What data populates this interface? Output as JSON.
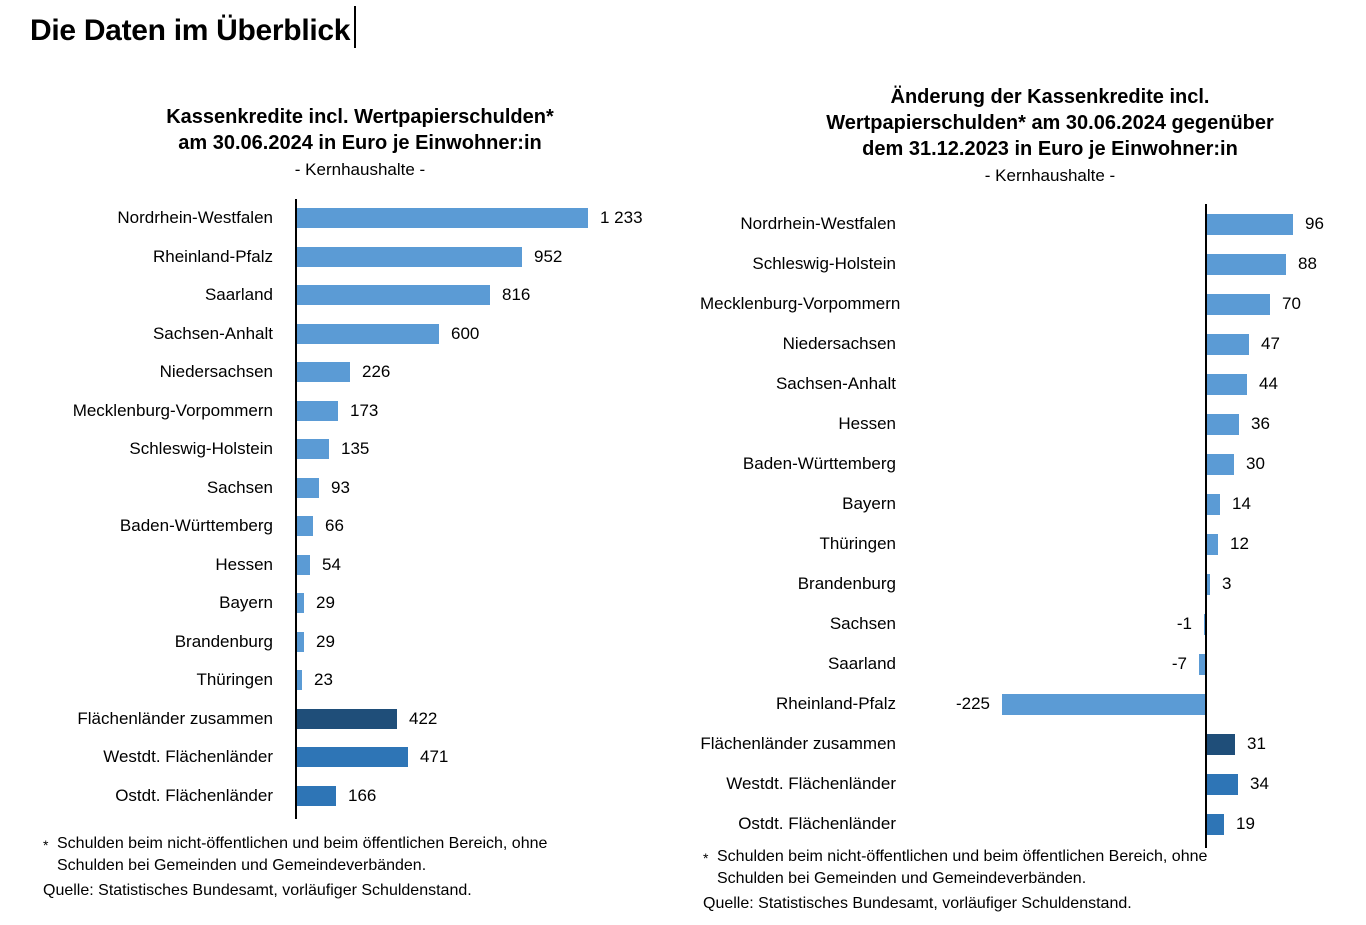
{
  "page": {
    "title": "Die Daten im Überblick"
  },
  "colors": {
    "state": "#5B9BD5",
    "region": "#2E75B6",
    "total": "#1F4E79",
    "axis": "#000000"
  },
  "footnote": {
    "marker": "*",
    "line1": "Schulden beim nicht-öffentlichen und beim öffentlichen Bereich, ohne",
    "line2": "Schulden bei Gemeinden und Gemeindeverbänden.",
    "source": "Quelle: Statistisches Bundesamt, vorläufiger Schuldenstand."
  },
  "chart_data": [
    {
      "type": "bar",
      "orientation": "horizontal",
      "title_lines": [
        "Kassenkredite incl. Wertpapierschulden*",
        "am 30.06.2024 in Euro je Einwohner:in"
      ],
      "subtitle": "- Kernhaushalte -",
      "xlabel": "Euro je Einwohner:in",
      "xlim": [
        0,
        1400
      ],
      "grid": false,
      "legend": "none",
      "categories": [
        "Nordrhein-Westfalen",
        "Rheinland-Pfalz",
        "Saarland",
        "Sachsen-Anhalt",
        "Niedersachsen",
        "Mecklenburg-Vorpommern",
        "Schleswig-Holstein",
        "Sachsen",
        "Baden-Württemberg",
        "Hessen",
        "Bayern",
        "Brandenburg",
        "Thüringen",
        "Flächenländer zusammen",
        "Westdt. Flächenländer",
        "Ostdt. Flächenländer"
      ],
      "values": [
        1233,
        952,
        816,
        600,
        226,
        173,
        135,
        93,
        66,
        54,
        29,
        29,
        23,
        422,
        471,
        166
      ],
      "value_labels": [
        "1 233",
        "952",
        "816",
        "600",
        "226",
        "173",
        "135",
        "93",
        "66",
        "54",
        "29",
        "29",
        "23",
        "422",
        "471",
        "166"
      ],
      "bar_roles": [
        "state",
        "state",
        "state",
        "state",
        "state",
        "state",
        "state",
        "state",
        "state",
        "state",
        "state",
        "state",
        "state",
        "total",
        "region",
        "region"
      ]
    },
    {
      "type": "bar",
      "orientation": "horizontal",
      "title_lines": [
        "Änderung der Kassenkredite incl.",
        "Wertpapierschulden* am 30.06.2024 gegenüber",
        "dem 31.12.2023 in Euro je Einwohner:in"
      ],
      "subtitle": "- Kernhaushalte -",
      "xlabel": "Euro je Einwohner:in",
      "xlim": [
        -250,
        140
      ],
      "grid": false,
      "legend": "none",
      "categories": [
        "Nordrhein-Westfalen",
        "Schleswig-Holstein",
        "Mecklenburg-Vorpommern",
        "Niedersachsen",
        "Sachsen-Anhalt",
        "Hessen",
        "Baden-Württemberg",
        "Bayern",
        "Thüringen",
        "Brandenburg",
        "Sachsen",
        "Saarland",
        "Rheinland-Pfalz",
        "Flächenländer zusammen",
        "Westdt. Flächenländer",
        "Ostdt. Flächenländer"
      ],
      "values": [
        96,
        88,
        70,
        47,
        44,
        36,
        30,
        14,
        12,
        3,
        -1,
        -7,
        -225,
        31,
        34,
        19
      ],
      "value_labels": [
        "96",
        "88",
        "70",
        "47",
        "44",
        "36",
        "30",
        "14",
        "12",
        "3",
        "-1",
        "-7",
        "-225",
        "31",
        "34",
        "19"
      ],
      "bar_roles": [
        "state",
        "state",
        "state",
        "state",
        "state",
        "state",
        "state",
        "state",
        "state",
        "state",
        "state",
        "state",
        "state",
        "total",
        "region",
        "region"
      ]
    }
  ]
}
